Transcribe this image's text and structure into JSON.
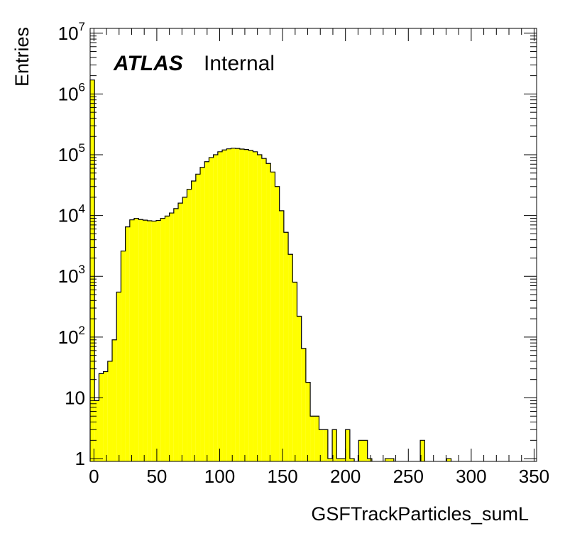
{
  "chart_data": {
    "type": "histogram",
    "xlabel": "GSFTrackParticles_sumL",
    "ylabel": "Entries",
    "xlim": [
      -3,
      352
    ],
    "ylim": [
      0.9,
      12000000
    ],
    "log_y": true,
    "fill_color": "#ffff00",
    "line_color": "#000000",
    "label": {
      "experiment": "ATLAS",
      "status": "Internal"
    },
    "x_ticks": [
      0,
      50,
      100,
      150,
      200,
      250,
      300,
      350
    ],
    "y_ticks": [
      {
        "value": 1,
        "base": "1",
        "exp": ""
      },
      {
        "value": 10,
        "base": "10",
        "exp": ""
      },
      {
        "value": 100,
        "base": "10",
        "exp": "2"
      },
      {
        "value": 1000,
        "base": "10",
        "exp": "3"
      },
      {
        "value": 10000,
        "base": "10",
        "exp": "4"
      },
      {
        "value": 100000,
        "base": "10",
        "exp": "5"
      },
      {
        "value": 1000000,
        "base": "10",
        "exp": "6"
      },
      {
        "value": 10000000,
        "base": "10",
        "exp": "7"
      }
    ],
    "bin_width": 3.5,
    "bins": [
      [
        -3,
        1700000
      ],
      [
        0.5,
        9
      ],
      [
        4,
        25
      ],
      [
        7.5,
        27
      ],
      [
        11,
        40
      ],
      [
        14.5,
        90
      ],
      [
        18,
        550
      ],
      [
        21.5,
        2600
      ],
      [
        25,
        6500
      ],
      [
        28.5,
        8500
      ],
      [
        32,
        9000
      ],
      [
        35.5,
        8600
      ],
      [
        39,
        8400
      ],
      [
        42.5,
        8200
      ],
      [
        46,
        8100
      ],
      [
        49.5,
        8300
      ],
      [
        53,
        9000
      ],
      [
        56.5,
        9800
      ],
      [
        60,
        11000
      ],
      [
        63.5,
        13000
      ],
      [
        67,
        16000
      ],
      [
        70.5,
        20000
      ],
      [
        74,
        27000
      ],
      [
        77.5,
        37000
      ],
      [
        81,
        48000
      ],
      [
        84.5,
        62000
      ],
      [
        88,
        77000
      ],
      [
        91.5,
        90000
      ],
      [
        95,
        100000
      ],
      [
        98.5,
        112000
      ],
      [
        102,
        120000
      ],
      [
        105.5,
        125000
      ],
      [
        109,
        128000
      ],
      [
        112.5,
        127000
      ],
      [
        116,
        124000
      ],
      [
        119.5,
        122000
      ],
      [
        123,
        118000
      ],
      [
        126.5,
        112000
      ],
      [
        130,
        100000
      ],
      [
        133.5,
        87000
      ],
      [
        137,
        72000
      ],
      [
        140.5,
        52000
      ],
      [
        144,
        30000
      ],
      [
        147.5,
        12000
      ],
      [
        151,
        5300
      ],
      [
        154.5,
        2300
      ],
      [
        158,
        800
      ],
      [
        161.5,
        220
      ],
      [
        165,
        65
      ],
      [
        168.5,
        18
      ],
      [
        172,
        5
      ],
      [
        175.5,
        5
      ],
      [
        179,
        3
      ],
      [
        182.5,
        3
      ],
      [
        186,
        1
      ],
      [
        189.5,
        3
      ],
      [
        193,
        1
      ],
      [
        196.5,
        1
      ],
      [
        200,
        3
      ],
      [
        203.5,
        1
      ],
      [
        210.5,
        2
      ],
      [
        214,
        2
      ],
      [
        217.5,
        1
      ],
      [
        231.5,
        1
      ],
      [
        235,
        1
      ],
      [
        259.5,
        2
      ],
      [
        280.5,
        1
      ]
    ]
  }
}
